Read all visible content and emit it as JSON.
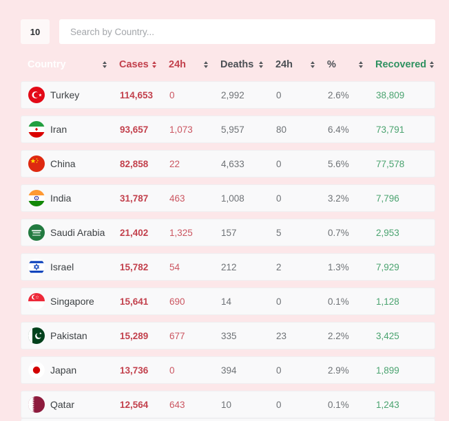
{
  "controls": {
    "page_size": "10",
    "search_placeholder": "Search by Country..."
  },
  "colors": {
    "page_bg": "#fce7e9",
    "card_bg": "#f9f9fa",
    "card_border": "#efeff1",
    "accent_red": "#c2404c",
    "red_light": "#cb5560",
    "green_header": "#2e9160",
    "green_value": "#4aa36f",
    "gray_text": "#6e7276",
    "dark_text": "#3c4043",
    "arrow_gray": "#54585c",
    "white": "#ffffff"
  },
  "table": {
    "columns": [
      {
        "key": "country",
        "label": "Country",
        "color": "#ffffff",
        "arrow_color": "#54585c"
      },
      {
        "key": "cases",
        "label": "Cases",
        "color": "#c2404c",
        "arrow_color": "#c2404c"
      },
      {
        "key": "cases_24h",
        "label": "24h",
        "color": "#c2404c",
        "arrow_color": "#54585c"
      },
      {
        "key": "deaths",
        "label": "Deaths",
        "color": "#4a4f54",
        "arrow_color": "#54585c"
      },
      {
        "key": "deaths_24h",
        "label": "24h",
        "color": "#4a4f54",
        "arrow_color": "#54585c"
      },
      {
        "key": "pct",
        "label": "%",
        "color": "#4a4f54",
        "arrow_color": "#54585c"
      },
      {
        "key": "recovered",
        "label": "Recovered",
        "color": "#2e9160",
        "arrow_color": "#54585c"
      }
    ],
    "rows": [
      {
        "country": "Turkey",
        "flag": "flag-turkey",
        "cases": "114,653",
        "cases_24h": "0",
        "deaths": "2,992",
        "deaths_24h": "0",
        "pct": "2.6%",
        "recovered": "38,809"
      },
      {
        "country": "Iran",
        "flag": "flag-iran",
        "cases": "93,657",
        "cases_24h": "1,073",
        "deaths": "5,957",
        "deaths_24h": "80",
        "pct": "6.4%",
        "recovered": "73,791"
      },
      {
        "country": "China",
        "flag": "flag-china",
        "cases": "82,858",
        "cases_24h": "22",
        "deaths": "4,633",
        "deaths_24h": "0",
        "pct": "5.6%",
        "recovered": "77,578"
      },
      {
        "country": "India",
        "flag": "flag-india",
        "cases": "31,787",
        "cases_24h": "463",
        "deaths": "1,008",
        "deaths_24h": "0",
        "pct": "3.2%",
        "recovered": "7,796"
      },
      {
        "country": "Saudi Arabia",
        "flag": "flag-saudi-arabia",
        "cases": "21,402",
        "cases_24h": "1,325",
        "deaths": "157",
        "deaths_24h": "5",
        "pct": "0.7%",
        "recovered": "2,953"
      },
      {
        "country": "Israel",
        "flag": "flag-israel",
        "cases": "15,782",
        "cases_24h": "54",
        "deaths": "212",
        "deaths_24h": "2",
        "pct": "1.3%",
        "recovered": "7,929"
      },
      {
        "country": "Singapore",
        "flag": "flag-singapore",
        "cases": "15,641",
        "cases_24h": "690",
        "deaths": "14",
        "deaths_24h": "0",
        "pct": "0.1%",
        "recovered": "1,128"
      },
      {
        "country": "Pakistan",
        "flag": "flag-pakistan",
        "cases": "15,289",
        "cases_24h": "677",
        "deaths": "335",
        "deaths_24h": "23",
        "pct": "2.2%",
        "recovered": "3,425"
      },
      {
        "country": "Japan",
        "flag": "flag-japan",
        "cases": "13,736",
        "cases_24h": "0",
        "deaths": "394",
        "deaths_24h": "0",
        "pct": "2.9%",
        "recovered": "1,899"
      },
      {
        "country": "Qatar",
        "flag": "flag-qatar",
        "cases": "12,564",
        "cases_24h": "643",
        "deaths": "10",
        "deaths_24h": "0",
        "pct": "0.1%",
        "recovered": "1,243"
      }
    ]
  }
}
